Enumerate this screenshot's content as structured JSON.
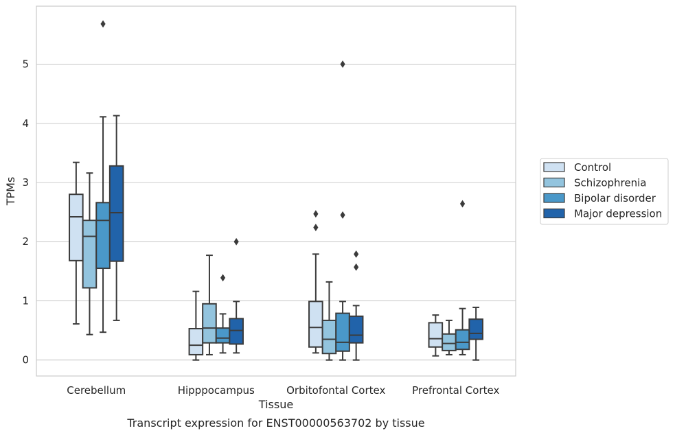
{
  "chart_data": {
    "type": "box",
    "xlabel": "Tissue",
    "ylabel": "TPMs",
    "caption": "Transcript expression for ENST00000563702 by tissue",
    "categories": [
      "Cerebellum",
      "Hipppocampus",
      "Orbitofontal Cortex",
      "Prefrontal Cortex"
    ],
    "yticks": [
      0,
      1,
      2,
      3,
      4,
      5
    ],
    "ylim": [
      -0.27,
      5.98
    ],
    "grid": "horizontal",
    "legend_position": "right",
    "series": [
      {
        "name": "Control",
        "color": "#cfe1f2",
        "boxes": [
          {
            "whislo": 0.61,
            "q1": 1.68,
            "med": 2.42,
            "q3": 2.8,
            "whishi": 3.34,
            "fliers": []
          },
          {
            "whislo": 0.0,
            "q1": 0.09,
            "med": 0.25,
            "q3": 0.53,
            "whishi": 1.16,
            "fliers": []
          },
          {
            "whislo": 0.12,
            "q1": 0.22,
            "med": 0.55,
            "q3": 0.99,
            "whishi": 1.79,
            "fliers": [
              2.24,
              2.47
            ]
          },
          {
            "whislo": 0.07,
            "q1": 0.22,
            "med": 0.36,
            "q3": 0.63,
            "whishi": 0.76,
            "fliers": []
          }
        ]
      },
      {
        "name": "Schizophrenia",
        "color": "#93c4de",
        "boxes": [
          {
            "whislo": 0.43,
            "q1": 1.22,
            "med": 2.09,
            "q3": 2.36,
            "whishi": 3.16,
            "fliers": []
          },
          {
            "whislo": 0.09,
            "q1": 0.29,
            "med": 0.54,
            "q3": 0.95,
            "whishi": 1.77,
            "fliers": []
          },
          {
            "whislo": 0.0,
            "q1": 0.11,
            "med": 0.35,
            "q3": 0.67,
            "whishi": 1.32,
            "fliers": []
          },
          {
            "whislo": 0.09,
            "q1": 0.16,
            "med": 0.28,
            "q3": 0.44,
            "whishi": 0.67,
            "fliers": []
          }
        ]
      },
      {
        "name": "Bipolar disorder",
        "color": "#4a98c9",
        "boxes": [
          {
            "whislo": 0.47,
            "q1": 1.55,
            "med": 2.36,
            "q3": 2.66,
            "whishi": 4.11,
            "fliers": [
              5.68
            ]
          },
          {
            "whislo": 0.12,
            "q1": 0.29,
            "med": 0.37,
            "q3": 0.54,
            "whishi": 0.78,
            "fliers": [
              1.39
            ]
          },
          {
            "whislo": 0.0,
            "q1": 0.15,
            "med": 0.3,
            "q3": 0.79,
            "whishi": 0.99,
            "fliers": [
              2.45,
              5.0
            ]
          },
          {
            "whislo": 0.09,
            "q1": 0.18,
            "med": 0.3,
            "q3": 0.51,
            "whishi": 0.87,
            "fliers": [
              2.64
            ]
          }
        ]
      },
      {
        "name": "Major depression",
        "color": "#2163aa",
        "boxes": [
          {
            "whislo": 0.67,
            "q1": 1.67,
            "med": 2.49,
            "q3": 3.28,
            "whishi": 4.13,
            "fliers": []
          },
          {
            "whislo": 0.12,
            "q1": 0.27,
            "med": 0.5,
            "q3": 0.7,
            "whishi": 0.99,
            "fliers": [
              2.0
            ]
          },
          {
            "whislo": 0.0,
            "q1": 0.29,
            "med": 0.42,
            "q3": 0.74,
            "whishi": 0.92,
            "fliers": [
              1.57,
              1.79
            ]
          },
          {
            "whislo": 0.0,
            "q1": 0.35,
            "med": 0.45,
            "q3": 0.69,
            "whishi": 0.89,
            "fliers": []
          }
        ]
      }
    ]
  }
}
